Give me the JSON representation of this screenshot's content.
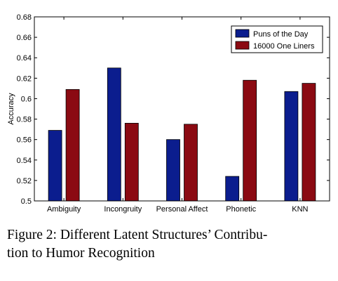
{
  "chart_data": {
    "type": "bar",
    "categories": [
      "Ambiguity",
      "Incongruity",
      "Personal Affect",
      "Phonetic",
      "KNN"
    ],
    "series": [
      {
        "name": "Puns of the Day",
        "values": [
          0.569,
          0.63,
          0.56,
          0.524,
          0.607
        ],
        "color": "#0b1d8e"
      },
      {
        "name": "16000 One Liners",
        "values": [
          0.609,
          0.576,
          0.575,
          0.618,
          0.615
        ],
        "color": "#8b0a12"
      }
    ],
    "title": "",
    "xlabel": "",
    "ylabel": "Accuracy",
    "ylim": [
      0.5,
      0.68
    ],
    "yticks": [
      "0.5",
      "0.52",
      "0.54",
      "0.56",
      "0.58",
      "0.6",
      "0.62",
      "0.64",
      "0.66",
      "0.68"
    ],
    "grid": false,
    "legend_position": "top-right"
  },
  "caption": {
    "line1": "Figure 2:  Different Latent Structures’ Contribu-",
    "line2": "tion to Humor Recognition"
  }
}
